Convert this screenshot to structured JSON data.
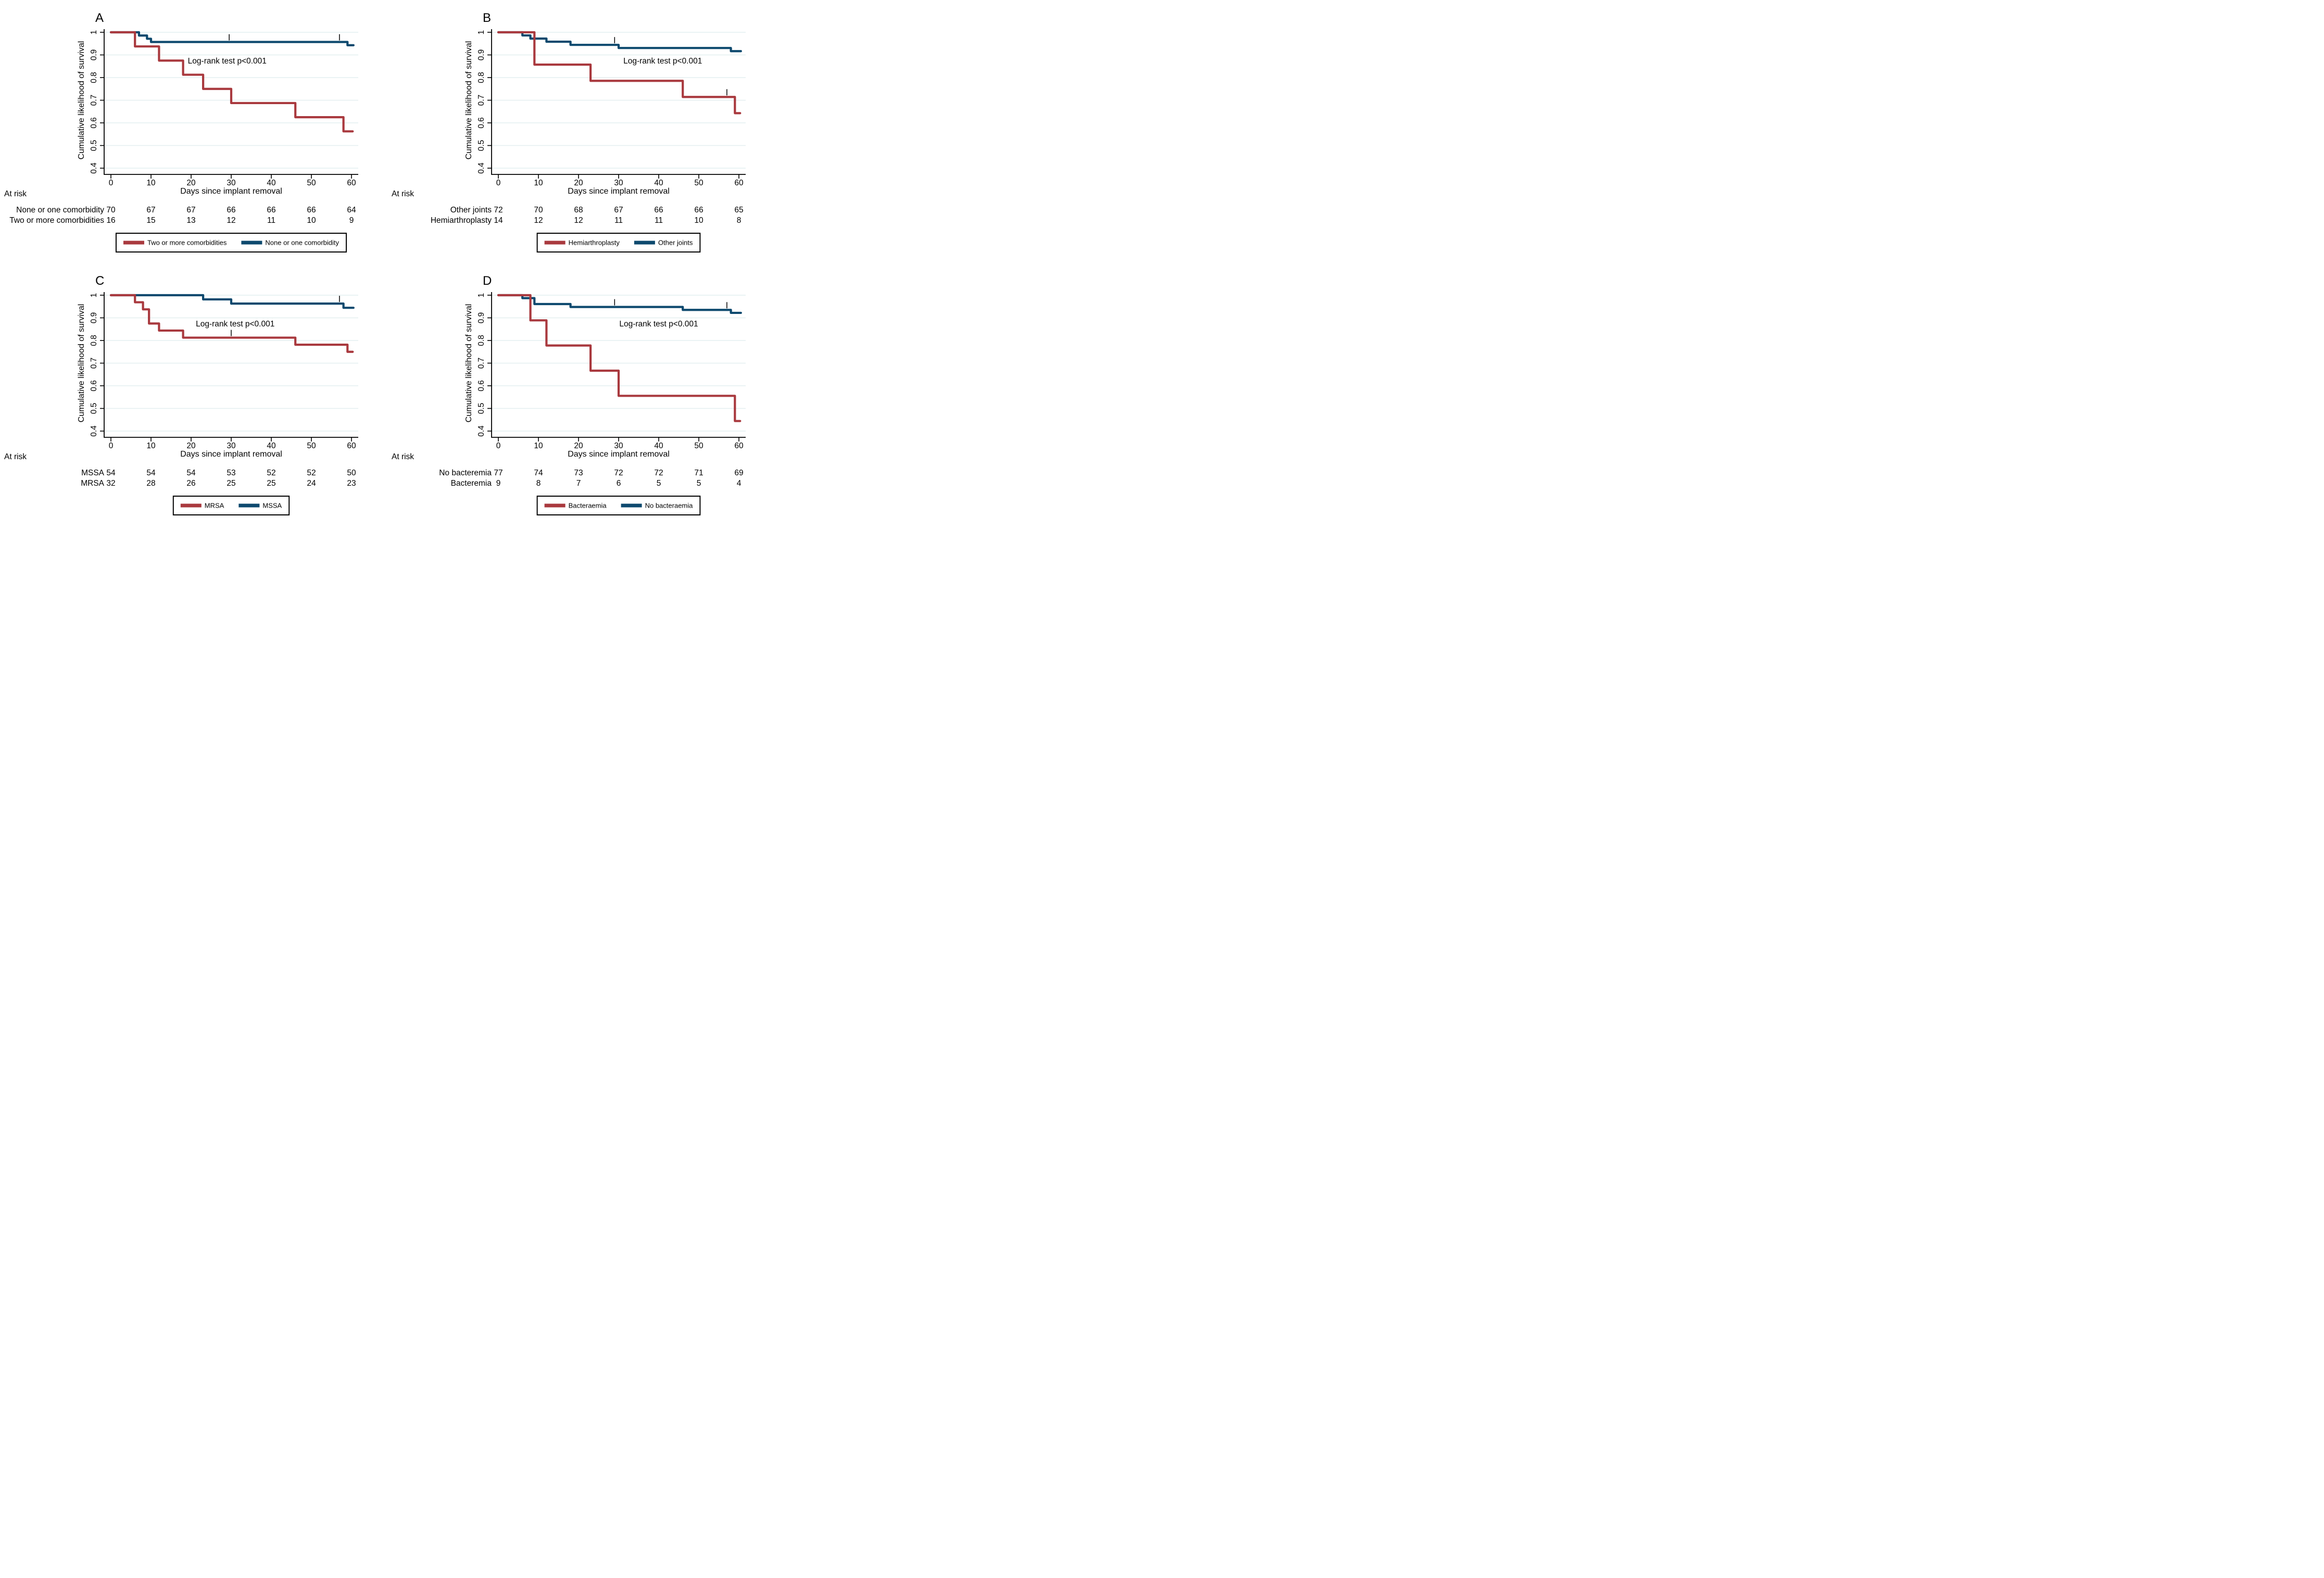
{
  "figure": {
    "colors": {
      "red": "#A9393E",
      "blue": "#0D496E",
      "grid": "#E4EFF0",
      "axis": "#000000"
    },
    "xlabel": "Days since implant removal",
    "ylabel": "Cumulative likelihood of survival",
    "at_risk_label": "At risk",
    "annotation_text": "Log-rank test p<0.001",
    "xticks": [
      0,
      10,
      20,
      30,
      40,
      50,
      60
    ],
    "yticks": [
      0.4,
      0.5,
      0.6,
      0.7,
      0.8,
      0.9,
      1
    ],
    "xlim": [
      0,
      60
    ],
    "ylim": [
      0.4,
      1.0
    ]
  },
  "chart_data": [
    {
      "panel": "A",
      "type": "line",
      "subtype": "kaplan-meier-step",
      "title": "A",
      "annotation": "Log-rank test p<0.001",
      "annotation_pos": {
        "x": 29,
        "y": 0.873
      },
      "xlabel": "Days since implant removal",
      "ylabel": "Cumulative likelihood of survival",
      "xlim": [
        0,
        60
      ],
      "ylim": [
        0.4,
        1.0
      ],
      "xticks": [
        0,
        10,
        20,
        30,
        40,
        50,
        60
      ],
      "yticks": [
        0.4,
        0.5,
        0.6,
        0.7,
        0.8,
        0.9,
        1
      ],
      "grid": "horizontal",
      "series": [
        {
          "name": "None or one comorbidity",
          "color_key": "blue",
          "steps": [
            [
              0,
              1
            ],
            [
              7,
              0.9857
            ],
            [
              9,
              0.9714
            ],
            [
              10,
              0.9571
            ],
            [
              59,
              0.9429
            ]
          ],
          "end": 60.5,
          "censors": [
            [
              29.5,
              0.9571
            ],
            [
              57,
              0.9571
            ]
          ]
        },
        {
          "name": "Two or more comorbidities",
          "color_key": "red",
          "steps": [
            [
              0,
              1
            ],
            [
              6,
              0.9375
            ],
            [
              12,
              0.875
            ],
            [
              18,
              0.8125
            ],
            [
              23,
              0.75
            ],
            [
              30,
              0.6875
            ],
            [
              46,
              0.625
            ],
            [
              58,
              0.5625
            ]
          ],
          "end": 60.3,
          "censors": []
        }
      ],
      "at_risk": {
        "label": "At risk",
        "rows": [
          {
            "label": "None or one comorbidity",
            "counts": [
              70,
              67,
              67,
              66,
              66,
              66,
              64
            ]
          },
          {
            "label": "Two or more comorbidities",
            "counts": [
              16,
              15,
              13,
              12,
              11,
              10,
              9
            ]
          }
        ]
      },
      "legend": [
        {
          "label": "Two or more comorbidities",
          "color_key": "red"
        },
        {
          "label": "None or one comorbidity",
          "color_key": "blue"
        }
      ]
    },
    {
      "panel": "B",
      "type": "line",
      "subtype": "kaplan-meier-step",
      "title": "B",
      "annotation": "Log-rank test p<0.001",
      "annotation_pos": {
        "x": 41,
        "y": 0.873
      },
      "xlabel": "Days since implant removal",
      "ylabel": "Cumulative likelihood of survival",
      "xlim": [
        0,
        60
      ],
      "ylim": [
        0.4,
        1.0
      ],
      "xticks": [
        0,
        10,
        20,
        30,
        40,
        50,
        60
      ],
      "yticks": [
        0.4,
        0.5,
        0.6,
        0.7,
        0.8,
        0.9,
        1
      ],
      "grid": "horizontal",
      "series": [
        {
          "name": "Other joints",
          "color_key": "blue",
          "steps": [
            [
              0,
              1
            ],
            [
              6,
              0.9861
            ],
            [
              8,
              0.9722
            ],
            [
              12,
              0.9583
            ],
            [
              18,
              0.9444
            ],
            [
              30,
              0.9306
            ],
            [
              58,
              0.9167
            ]
          ],
          "end": 60.5,
          "censors": [
            [
              29,
              0.9444
            ]
          ]
        },
        {
          "name": "Hemiarthroplasty",
          "color_key": "red",
          "steps": [
            [
              0,
              1
            ],
            [
              9,
              0.8571
            ],
            [
              23,
              0.7857
            ],
            [
              46,
              0.7143
            ],
            [
              59,
              0.6429
            ]
          ],
          "end": 60.3,
          "censors": [
            [
              57,
              0.7143
            ]
          ]
        }
      ],
      "at_risk": {
        "label": "At risk",
        "rows": [
          {
            "label": "Other joints",
            "counts": [
              72,
              70,
              68,
              67,
              66,
              66,
              65
            ]
          },
          {
            "label": "Hemiarthroplasty",
            "counts": [
              14,
              12,
              12,
              11,
              11,
              10,
              8
            ]
          }
        ]
      },
      "legend": [
        {
          "label": "Hemiarthroplasty",
          "color_key": "red"
        },
        {
          "label": "Other joints",
          "color_key": "blue"
        }
      ]
    },
    {
      "panel": "C",
      "type": "line",
      "subtype": "kaplan-meier-step",
      "title": "C",
      "annotation": "Log-rank test p<0.001",
      "annotation_pos": {
        "x": 31,
        "y": 0.873
      },
      "xlabel": "Days since implant removal",
      "ylabel": "Cumulative likelihood of survival",
      "xlim": [
        0,
        60
      ],
      "ylim": [
        0.4,
        1.0
      ],
      "xticks": [
        0,
        10,
        20,
        30,
        40,
        50,
        60
      ],
      "yticks": [
        0.4,
        0.5,
        0.6,
        0.7,
        0.8,
        0.9,
        1
      ],
      "grid": "horizontal",
      "series": [
        {
          "name": "MSSA",
          "color_key": "blue",
          "steps": [
            [
              0,
              1
            ],
            [
              23,
              0.9815
            ],
            [
              30,
              0.963
            ],
            [
              58,
              0.9444
            ]
          ],
          "end": 60.5,
          "censors": [
            [
              57,
              0.963
            ]
          ]
        },
        {
          "name": "MRSA",
          "color_key": "red",
          "steps": [
            [
              0,
              1
            ],
            [
              6,
              0.9688
            ],
            [
              8,
              0.9375
            ],
            [
              9.5,
              0.875
            ],
            [
              12,
              0.8438
            ],
            [
              18,
              0.8125
            ],
            [
              46,
              0.7813
            ],
            [
              59,
              0.75
            ]
          ],
          "end": 60.3,
          "censors": [
            [
              30,
              0.8125
            ]
          ]
        }
      ],
      "at_risk": {
        "label": "At risk",
        "rows": [
          {
            "label": "MSSA",
            "counts": [
              54,
              54,
              54,
              53,
              52,
              52,
              50
            ]
          },
          {
            "label": "MRSA",
            "counts": [
              32,
              28,
              26,
              25,
              25,
              24,
              23
            ]
          }
        ]
      },
      "legend": [
        {
          "label": "MRSA",
          "color_key": "red"
        },
        {
          "label": "MSSA",
          "color_key": "blue"
        }
      ]
    },
    {
      "panel": "D",
      "type": "line",
      "subtype": "kaplan-meier-step",
      "title": "D",
      "annotation": "Log-rank test p<0.001",
      "annotation_pos": {
        "x": 40,
        "y": 0.873
      },
      "xlabel": "Days since implant removal",
      "ylabel": "Cumulative likelihood of survival",
      "xlim": [
        0,
        60
      ],
      "ylim": [
        0.4,
        1.0
      ],
      "xticks": [
        0,
        10,
        20,
        30,
        40,
        50,
        60
      ],
      "yticks": [
        0.4,
        0.5,
        0.6,
        0.7,
        0.8,
        0.9,
        1
      ],
      "grid": "horizontal",
      "series": [
        {
          "name": "No bacteraemia",
          "color_key": "blue",
          "steps": [
            [
              0,
              1
            ],
            [
              6,
              0.987
            ],
            [
              9,
              0.961
            ],
            [
              18,
              0.948
            ],
            [
              46,
              0.935
            ],
            [
              58,
              0.922
            ]
          ],
          "end": 60.5,
          "censors": [
            [
              29,
              0.948
            ],
            [
              57,
              0.935
            ]
          ]
        },
        {
          "name": "Bacteraemia",
          "color_key": "red",
          "steps": [
            [
              0,
              1
            ],
            [
              8,
              0.8889
            ],
            [
              12,
              0.7778
            ],
            [
              23,
              0.6667
            ],
            [
              30,
              0.5556
            ],
            [
              59,
              0.4444
            ]
          ],
          "end": 60.3,
          "censors": []
        }
      ],
      "at_risk": {
        "label": "At risk",
        "rows": [
          {
            "label": "No bacteremia",
            "counts": [
              77,
              74,
              73,
              72,
              72,
              71,
              69
            ]
          },
          {
            "label": "Bacteremia",
            "counts": [
              9,
              8,
              7,
              6,
              5,
              5,
              4
            ]
          }
        ]
      },
      "legend": [
        {
          "label": "Bacteraemia",
          "color_key": "red"
        },
        {
          "label": "No bacteraemia",
          "color_key": "blue"
        }
      ]
    }
  ]
}
